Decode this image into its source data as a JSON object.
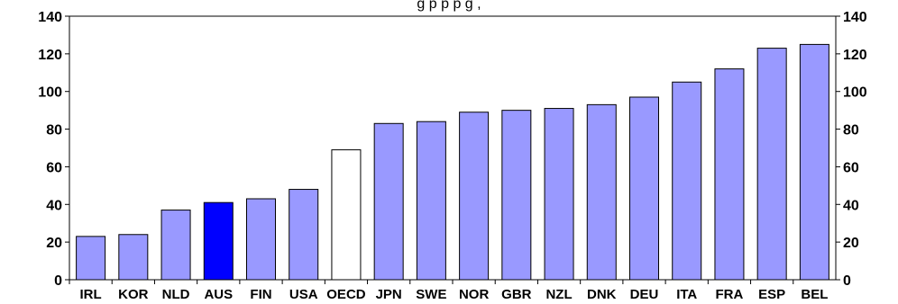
{
  "chart_data": {
    "type": "bar",
    "title_fragment": "g                                   p                    p p          g             ,",
    "categories": [
      "IRL",
      "KOR",
      "NLD",
      "AUS",
      "FIN",
      "USA",
      "OECD",
      "JPN",
      "SWE",
      "NOR",
      "GBR",
      "NZL",
      "DNK",
      "DEU",
      "ITA",
      "FRA",
      "ESP",
      "BEL"
    ],
    "values": [
      23,
      24,
      37,
      41,
      43,
      48,
      69,
      83,
      84,
      89,
      90,
      91,
      93,
      97,
      105,
      112,
      123,
      125
    ],
    "highlight": {
      "AUS": "#0000ff",
      "OECD": "#ffffff"
    },
    "bar_color": "#9999ff",
    "ylim": [
      0,
      140
    ],
    "yticks": [
      0,
      20,
      40,
      60,
      80,
      100,
      120,
      140
    ],
    "grid": false,
    "axes": "left-and-right"
  }
}
